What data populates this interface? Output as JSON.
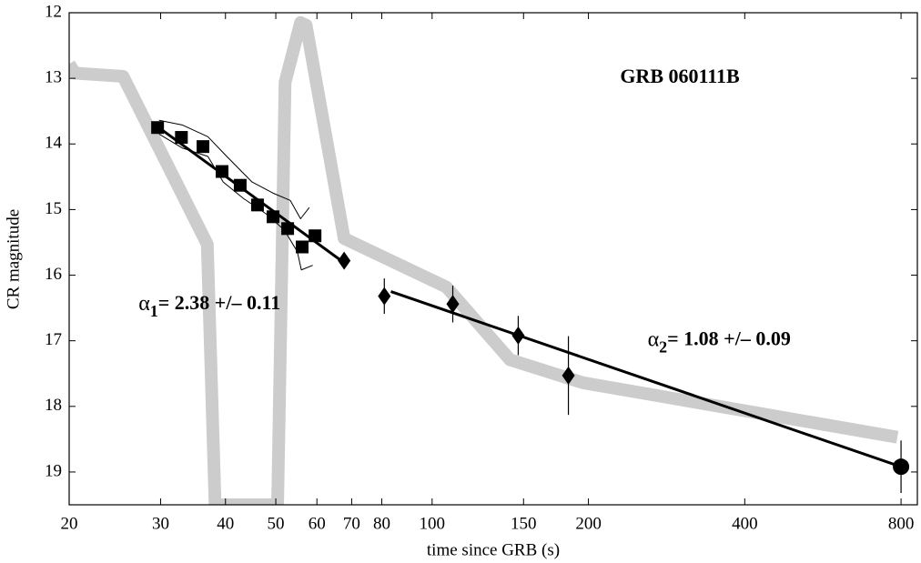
{
  "chart_data": {
    "type": "scatter",
    "xlabel": "time since GRB (s)",
    "ylabel": "CR magnitude",
    "xscale": "log",
    "y_inverted": true,
    "xlim": [
      20,
      860
    ],
    "ylim": [
      12,
      19.5
    ],
    "xticks": [
      20,
      30,
      40,
      50,
      60,
      70,
      80,
      100,
      150,
      200,
      400,
      800
    ],
    "yticks": [
      12,
      13,
      14,
      15,
      16,
      17,
      18,
      19
    ],
    "annotations": [
      {
        "text": "GRB 060111B",
        "x": 300,
        "y": 13.0
      },
      {
        "symbol": "α",
        "sub": "1",
        "text": "= 2.38 +/– 0.11",
        "x": 27.2,
        "y": 16.45
      },
      {
        "symbol": "α",
        "sub": "2",
        "text": "= 1.08 +/– 0.09",
        "x": 260,
        "y": 17.0
      }
    ],
    "series": [
      {
        "style": "line",
        "color": "#cccccc",
        "width": 14,
        "x": [
          20,
          20.5,
          25.4,
          36.9,
          38.2,
          50.4,
          52.1,
          55.8,
          57.2,
          67.7,
          106.5,
          141.3,
          195.2,
          787
        ],
        "values": [
          12.78,
          12.92,
          12.97,
          15.53,
          19.5,
          19.5,
          13.06,
          12.15,
          12.19,
          15.44,
          16.18,
          17.29,
          17.64,
          18.47
        ]
      },
      {
        "style": "line",
        "color": "#000000",
        "width": 1,
        "x": [
          29.8,
          33.0,
          37.0,
          40.0,
          45.0,
          49.4,
          53.3,
          55.8,
          58.0
        ],
        "values": [
          13.64,
          13.71,
          13.89,
          14.17,
          14.58,
          14.75,
          14.86,
          15.14,
          14.97
        ]
      },
      {
        "style": "line",
        "color": "#000000",
        "width": 1,
        "x": [
          29.8,
          33.0,
          37.0,
          39.6,
          43.3,
          47.8,
          51.9,
          55.0,
          56.0,
          58.9
        ],
        "values": [
          13.85,
          14.06,
          14.19,
          14.58,
          14.83,
          15.06,
          15.31,
          15.64,
          15.92,
          15.85
        ]
      },
      {
        "style": "line",
        "color": "#000000",
        "width": 3,
        "x": [
          29.4,
          68.2
        ],
        "values": [
          13.72,
          15.83
        ]
      },
      {
        "style": "line",
        "color": "#000000",
        "width": 3,
        "x": [
          83.3,
          800
        ],
        "values": [
          16.25,
          18.92
        ]
      },
      {
        "marker": "square",
        "color": "#000000",
        "x": [
          29.6,
          32.9,
          36.2,
          39.4,
          42.7,
          46.1,
          49.4,
          52.7,
          56.2,
          59.5
        ],
        "values": [
          13.75,
          13.9,
          14.04,
          14.42,
          14.63,
          14.93,
          15.11,
          15.29,
          15.57,
          15.4
        ]
      },
      {
        "marker": "diamond",
        "color": "#000000",
        "x": [
          67.7,
          80.9,
          109.6,
          146.5,
          183
        ],
        "values": [
          15.78,
          16.32,
          16.44,
          16.92,
          17.53
        ],
        "errors": [
          0.1,
          0.27,
          0.28,
          0.3,
          0.6
        ]
      },
      {
        "marker": "circle",
        "color": "#000000",
        "x": [
          800
        ],
        "values": [
          18.92
        ],
        "errors": [
          0.4
        ]
      }
    ]
  }
}
